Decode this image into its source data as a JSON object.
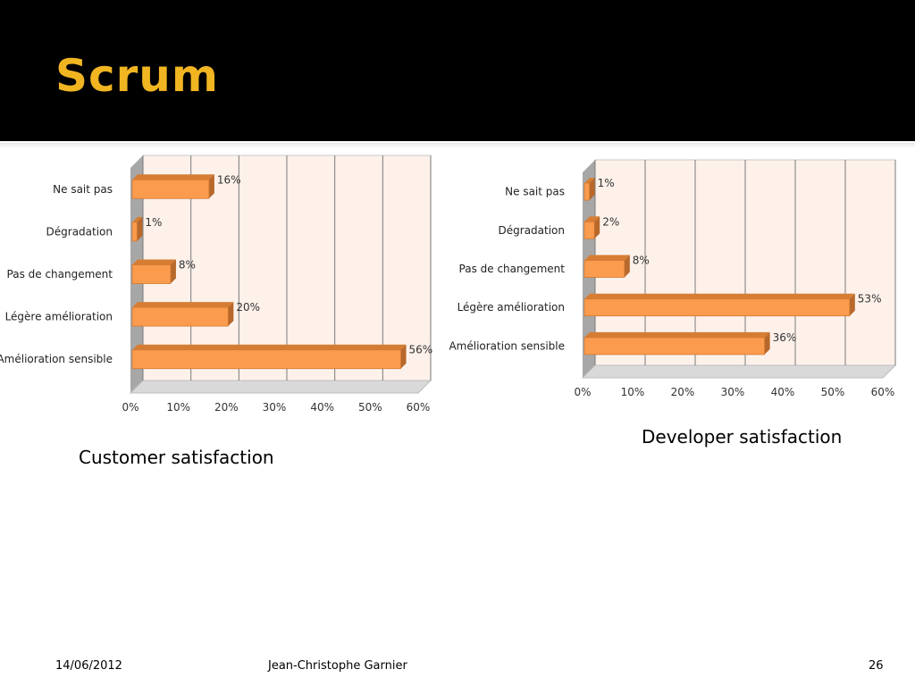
{
  "slide": {
    "title": "Scrum",
    "footer": {
      "date": "14/06/2012",
      "author": "Jean-Christophe Garnier",
      "page": "26"
    }
  },
  "colors": {
    "header_bg": "#000000",
    "title": "#f0b521",
    "bar_front": "#fb9b4d",
    "bar_top": "#d67d34",
    "bar_side": "#b8682b",
    "plot_bg": "#fdf1ea"
  },
  "chart_data": [
    {
      "type": "bar",
      "orientation": "horizontal",
      "caption": "Customer satisfaction",
      "categories": [
        "Ne sait pas",
        "Dégradation",
        "Pas de changement",
        "Légère amélioration",
        "Amélioration sensible"
      ],
      "values": [
        16,
        1,
        8,
        20,
        56
      ],
      "data_labels": [
        "16%",
        "1%",
        "8%",
        "20%",
        "56%"
      ],
      "x_ticks": [
        "0%",
        "10%",
        "20%",
        "30%",
        "40%",
        "50%",
        "60%"
      ],
      "xlim": [
        0,
        60
      ],
      "grid": true,
      "legend": "none"
    },
    {
      "type": "bar",
      "orientation": "horizontal",
      "caption": "Developer satisfaction",
      "categories": [
        "Ne sait pas",
        "Dégradation",
        "Pas de changement",
        "Légère amélioration",
        "Amélioration sensible"
      ],
      "values": [
        1,
        2,
        8,
        53,
        36
      ],
      "data_labels": [
        "1%",
        "2%",
        "8%",
        "53%",
        "36%"
      ],
      "x_ticks": [
        "0%",
        "10%",
        "20%",
        "30%",
        "40%",
        "50%",
        "60%"
      ],
      "xlim": [
        0,
        60
      ],
      "grid": true,
      "legend": "none"
    }
  ]
}
